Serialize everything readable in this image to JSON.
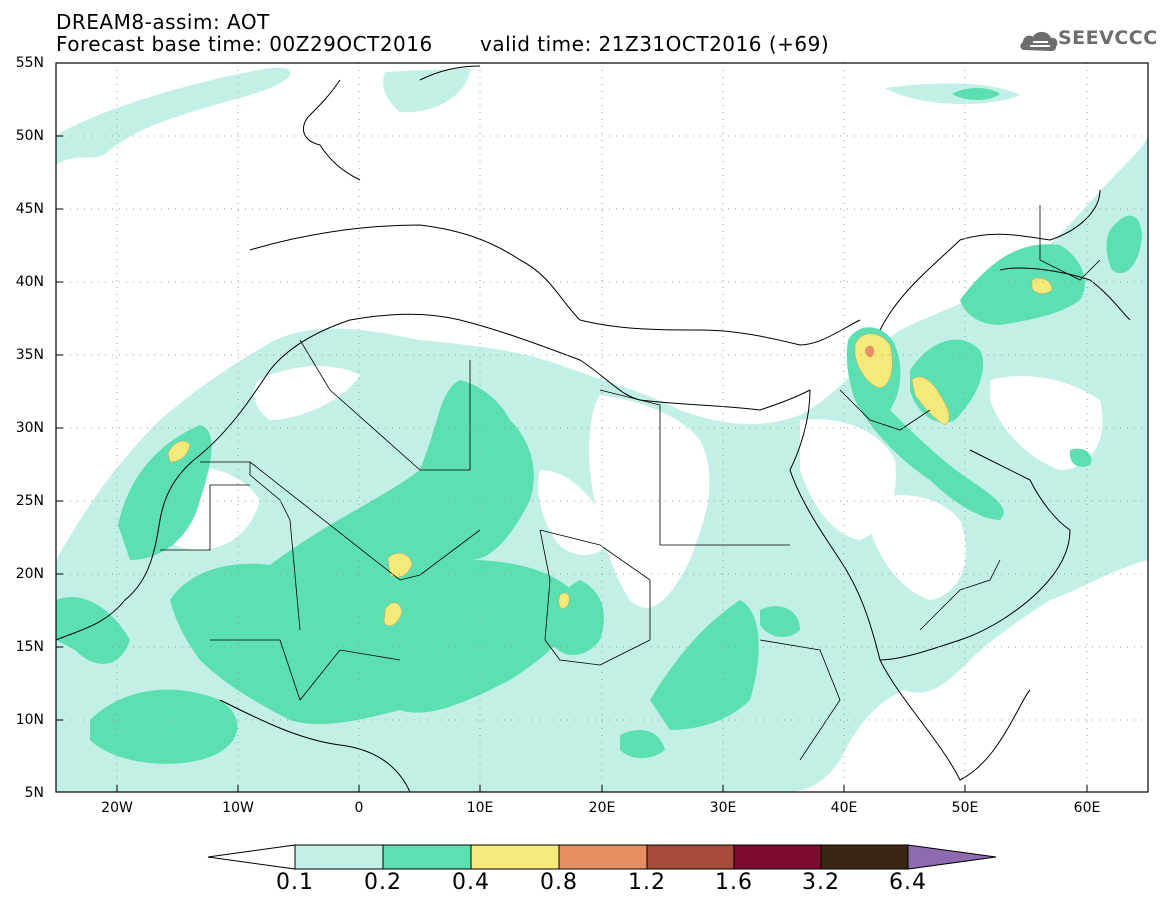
{
  "header": {
    "title": "DREAM8-assim: AOT",
    "base_time": "Forecast base time: 00Z29OCT2016",
    "valid_time": "valid time: 21Z31OCT2016 (+69)"
  },
  "logo": {
    "text": "SEEVCCC",
    "icon": "cloud-icon"
  },
  "map": {
    "variable": "AOT",
    "projection": "lat-lon",
    "lat_range": [
      5,
      55
    ],
    "lon_range": [
      -25,
      65
    ],
    "lat_labels": [
      "55N",
      "50N",
      "45N",
      "40N",
      "35N",
      "30N",
      "25N",
      "20N",
      "15N",
      "10N",
      "5N"
    ],
    "lon_labels": [
      "20W",
      "10W",
      "0",
      "10E",
      "20E",
      "30E",
      "40E",
      "50E",
      "60E"
    ]
  },
  "colorbar": {
    "levels": [
      "0.1",
      "0.2",
      "0.4",
      "0.8",
      "1.2",
      "1.6",
      "3.2",
      "6.4"
    ],
    "colors": [
      "#ffffff",
      "#c2f0e6",
      "#5ce0b2",
      "#f5e97a",
      "#e88e63",
      "#a64b3a",
      "#7d0b2e",
      "#3a2512",
      "#8e6ab0"
    ]
  }
}
